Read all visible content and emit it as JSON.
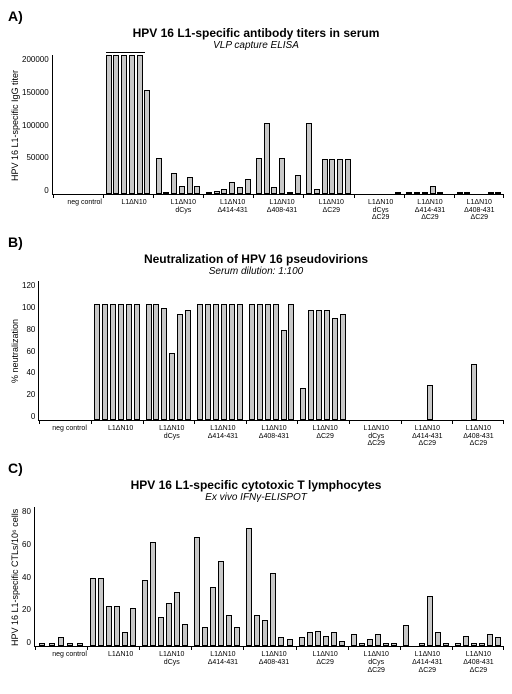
{
  "panelA": {
    "label": "A)",
    "title": "HPV 16 L1-specific antibody titers in serum",
    "subtitle": "VLP capture ELISA",
    "ylabel": "HPV 16 L1-specific IgG titer",
    "ymax": 200000,
    "yticks": [
      "200000",
      "150000",
      "100000",
      "50000",
      "0"
    ],
    "groups": [
      {
        "label": "neg control",
        "values": [
          0,
          0,
          0,
          0,
          0
        ]
      },
      {
        "label": "L1ΔN10",
        "values": [
          200000,
          200000,
          200000,
          200000,
          200000,
          150000
        ]
      },
      {
        "label": "L1ΔN10\ndCys",
        "values": [
          52000,
          3000,
          30000,
          12000,
          25000,
          12000
        ]
      },
      {
        "label": "L1ΔN10\nΔ414-431",
        "values": [
          3000,
          5000,
          7000,
          18000,
          10000,
          22000
        ]
      },
      {
        "label": "L1ΔN10\nΔ408-431",
        "values": [
          52000,
          102000,
          10000,
          52000,
          2000,
          28000
        ]
      },
      {
        "label": "L1ΔN10\nΔC29",
        "values": [
          102000,
          7000,
          50000,
          51000,
          50000,
          50000
        ]
      },
      {
        "label": "L1ΔN10\ndCys\nΔC29",
        "values": [
          0,
          0,
          0,
          0,
          0,
          3000
        ]
      },
      {
        "label": "L1ΔN10\nΔ414-431\nΔC29",
        "values": [
          3000,
          3000,
          3000,
          12000,
          3000,
          0
        ]
      },
      {
        "label": "L1ΔN10\nΔ408-431\nΔC29",
        "values": [
          2000,
          2000,
          0,
          0,
          2000,
          2000
        ]
      }
    ]
  },
  "panelB": {
    "label": "B)",
    "title": "Neutralization of HPV 16 pseudovirions",
    "subtitle": "Serum dilution: 1:100",
    "ylabel": "% neutralization",
    "ymax": 120,
    "yticks": [
      "120",
      "100",
      "80",
      "60",
      "40",
      "20",
      "0"
    ],
    "groups": [
      {
        "label": "neg control",
        "values": [
          0,
          0,
          0,
          0,
          0
        ]
      },
      {
        "label": "L1ΔN10",
        "values": [
          100,
          100,
          100,
          100,
          100,
          100
        ]
      },
      {
        "label": "L1ΔN10\ndCys",
        "values": [
          100,
          100,
          97,
          58,
          92,
          95
        ]
      },
      {
        "label": "L1ΔN10\nΔ414-431",
        "values": [
          100,
          100,
          100,
          100,
          100,
          100
        ]
      },
      {
        "label": "L1ΔN10\nΔ408-431",
        "values": [
          100,
          100,
          100,
          100,
          78,
          100
        ]
      },
      {
        "label": "L1ΔN10\nΔC29",
        "values": [
          28,
          95,
          95,
          95,
          88,
          92
        ]
      },
      {
        "label": "L1ΔN10\ndCys\nΔC29",
        "values": [
          0,
          0,
          0,
          0,
          0,
          0
        ]
      },
      {
        "label": "L1ΔN10\nΔ414-431\nΔC29",
        "values": [
          0,
          0,
          0,
          30,
          0,
          0
        ]
      },
      {
        "label": "L1ΔN10\nΔ408-431\nΔC29",
        "values": [
          0,
          0,
          48,
          0,
          0,
          0
        ]
      }
    ]
  },
  "panelC": {
    "label": "C)",
    "title": "HPV 16 L1-specific cytotoxic T lymphocytes",
    "subtitle": "Ex vivo IFNγ-ELISPOT",
    "ylabel": "HPV 16 L1-specific CTLs/10⁶ cells",
    "ymax": 80,
    "yticks": [
      "80",
      "60",
      "40",
      "20",
      "0"
    ],
    "groups": [
      {
        "label": "neg control",
        "values": [
          2,
          2,
          5,
          2,
          2
        ]
      },
      {
        "label": "L1ΔN10",
        "values": [
          39,
          39,
          23,
          23,
          8,
          22
        ]
      },
      {
        "label": "L1ΔN10\ndCys",
        "values": [
          38,
          60,
          17,
          25,
          31,
          13
        ]
      },
      {
        "label": "L1ΔN10\nΔ414-431",
        "values": [
          63,
          11,
          34,
          49,
          18,
          11
        ]
      },
      {
        "label": "L1ΔN10\nΔ408-431",
        "values": [
          68,
          18,
          15,
          42,
          5,
          4
        ]
      },
      {
        "label": "L1ΔN10\nΔC29",
        "values": [
          5,
          8,
          9,
          6,
          8,
          3
        ]
      },
      {
        "label": "L1ΔN10\ndCys\nΔC29",
        "values": [
          7,
          2,
          4,
          7,
          2,
          2
        ]
      },
      {
        "label": "L1ΔN10\nΔ414-431\nΔC29",
        "values": [
          12,
          0,
          2,
          29,
          8,
          2
        ]
      },
      {
        "label": "L1ΔN10\nΔ408-431\nΔC29",
        "values": [
          2,
          6,
          2,
          2,
          7,
          5
        ]
      }
    ]
  },
  "barColor": "#c8c8c8",
  "bg": "#ffffff"
}
